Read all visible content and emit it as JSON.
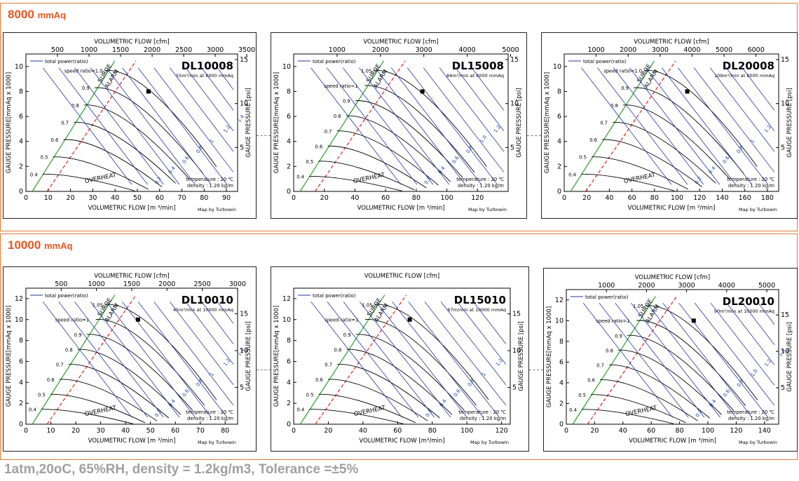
{
  "sections": [
    {
      "title": "8000",
      "unit": "mmAq"
    },
    {
      "title": "10000",
      "unit": "mmAq"
    }
  ],
  "footer": "1atm,20oC, 65%RH, density = 1.2kg/m3, Tolerance =±5%",
  "common": {
    "top_axis_label": "VOLUMETRIC FLOW [cfm]",
    "bottom_axis_label": "VOLUMETRIC FLOW [m ³/min]",
    "left_axis_label": "GAUGE PRESSURE[mmAq x 1000]",
    "right_axis_label": "GAUGE PRESSURE [psi]",
    "legend": "total power(ratio)",
    "surge": "SURGE",
    "alarm": "ALARM",
    "overheat": "OVERHEAT",
    "speed_ratio_label": "speed ratio=",
    "temperature": "temperature : 20 ℃",
    "density": "density : 1.20 kg/m",
    "credit": "Map by Turbowin",
    "colors": {
      "speed": "#000000",
      "power": "#1f3a9a",
      "surge": "#2aa02a",
      "alarm": "#e02020",
      "accent": "#e8551e"
    }
  },
  "chart_data": [
    {
      "type": "line",
      "model": "DL10008",
      "spec": "55m³/min at 8000 mmAq",
      "xlim": [
        0,
        95
      ],
      "ylim": [
        0,
        11
      ],
      "x_ticks": [
        0,
        10,
        20,
        30,
        40,
        50,
        60,
        70,
        80,
        90
      ],
      "y_ticks": [
        0,
        2,
        4,
        6,
        8,
        10
      ],
      "cfm_ticks": [
        500,
        1000,
        1500,
        2000,
        2500,
        3000,
        3500
      ],
      "psi_ticks": [
        5,
        10,
        15
      ],
      "speed_ratios": [
        "0.4",
        "0.5",
        "0.6",
        "0.7",
        "0.8",
        "0.9",
        "1.0"
      ],
      "speed_ratio_top": "1.0",
      "power_labels": [
        "0.2",
        "0.4",
        "0.6",
        "0.8",
        "1",
        "1.2",
        "1.4"
      ],
      "design_point": {
        "x": 55,
        "y": 8
      }
    },
    {
      "type": "line",
      "model": "DL15008",
      "spec": "84m³/min at 8000 mmAq",
      "xlim": [
        0,
        140
      ],
      "ylim": [
        0,
        11
      ],
      "x_ticks": [
        0,
        20,
        40,
        60,
        80,
        100,
        120
      ],
      "y_ticks": [
        0,
        2,
        4,
        6,
        8,
        10
      ],
      "cfm_ticks": [
        1000,
        2000,
        3000,
        4000,
        5000
      ],
      "psi_ticks": [
        5,
        10,
        15
      ],
      "speed_ratios": [
        "0.4",
        "0.5",
        "0.6",
        "0.7",
        "0.8",
        "0.9",
        "1",
        "1.05"
      ],
      "speed_ratio_top": "1",
      "power_labels": [
        "0.2",
        "0.4",
        "0.6",
        "0.8",
        "1.0",
        "1.2"
      ],
      "design_point": {
        "x": 84,
        "y": 8
      }
    },
    {
      "type": "line",
      "model": "DL20008",
      "spec": "109m³/min at 8000 mmAq",
      "xlim": [
        0,
        190
      ],
      "ylim": [
        0,
        11
      ],
      "x_ticks": [
        0,
        20,
        40,
        60,
        80,
        100,
        120,
        140,
        160,
        180
      ],
      "y_ticks": [
        0,
        2,
        4,
        6,
        8,
        10
      ],
      "cfm_ticks": [
        1000,
        2000,
        3000,
        4000,
        5000,
        6000
      ],
      "psi_ticks": [
        5,
        10,
        15
      ],
      "speed_ratios": [
        "0.4",
        "0.5",
        "0.6",
        "0.7",
        "0.8",
        "0.9",
        "1.0"
      ],
      "speed_ratio_top": "1.0",
      "power_labels": [
        "0.2",
        "0.4",
        "0.6",
        "0.8",
        "1",
        "1.2"
      ],
      "design_point": {
        "x": 109,
        "y": 8
      }
    },
    {
      "type": "line",
      "model": "DL10010",
      "spec": "45m³/min at 10000 mmAq",
      "xlim": [
        0,
        85
      ],
      "ylim": [
        0,
        13
      ],
      "x_ticks": [
        0,
        10,
        20,
        30,
        40,
        50,
        60,
        70,
        80
      ],
      "y_ticks": [
        0,
        2,
        4,
        6,
        8,
        10,
        12
      ],
      "cfm_ticks": [
        500,
        1000,
        1500,
        2000,
        2500,
        3000
      ],
      "psi_ticks": [
        5,
        10,
        15
      ],
      "speed_ratios": [
        "0.4",
        "0.5",
        "0.6",
        "0.7",
        "0.8",
        "0.9",
        "1",
        "1.05"
      ],
      "speed_ratio_top": "1",
      "power_labels": [
        "0.2",
        "0.4",
        "0.6",
        "0.8",
        "1",
        "1.2",
        "1.4"
      ],
      "design_point": {
        "x": 45,
        "y": 10
      }
    },
    {
      "type": "line",
      "model": "DL15010",
      "spec": "67m/min at 10000 mmAq",
      "xlim": [
        0,
        125
      ],
      "ylim": [
        0,
        13
      ],
      "x_ticks": [
        0,
        20,
        40,
        60,
        80,
        100,
        120
      ],
      "y_ticks": [
        0,
        2,
        4,
        6,
        8,
        10,
        12
      ],
      "cfm_ticks": [],
      "psi_ticks": [
        5,
        10,
        15
      ],
      "speed_ratios": [
        "0.4",
        "0.5",
        "0.6",
        "0.7",
        "0.8",
        "0.9",
        "1",
        "1.05"
      ],
      "speed_ratio_top": "1",
      "power_labels": [
        "0.2",
        "0.4",
        "0.6",
        "0.8",
        "1",
        "1.2"
      ],
      "design_point": {
        "x": 67,
        "y": 10
      },
      "bottom_label": "VOLUMETRIC FLOW [m³/min]"
    },
    {
      "type": "line",
      "model": "DL20010",
      "spec": "90m³/min at 10000 mmAq",
      "xlim": [
        0,
        150
      ],
      "ylim": [
        0,
        13
      ],
      "x_ticks": [
        0,
        20,
        40,
        60,
        80,
        100,
        120,
        140
      ],
      "y_ticks": [
        0,
        2,
        4,
        6,
        8,
        10,
        12
      ],
      "cfm_ticks": [
        1000,
        2000,
        3000,
        4000,
        5000
      ],
      "psi_ticks": [
        5,
        10,
        15
      ],
      "speed_ratios": [
        "0.4",
        "0.5",
        "0.6",
        "0.7",
        "0.8",
        "0.9",
        "1",
        "1.05"
      ],
      "speed_ratio_top": "1",
      "power_labels": [
        "0.2",
        "0.4",
        "0.6",
        "0.8",
        "1.0",
        "1.2",
        "1.4"
      ],
      "design_point": {
        "x": 90,
        "y": 10
      }
    }
  ]
}
